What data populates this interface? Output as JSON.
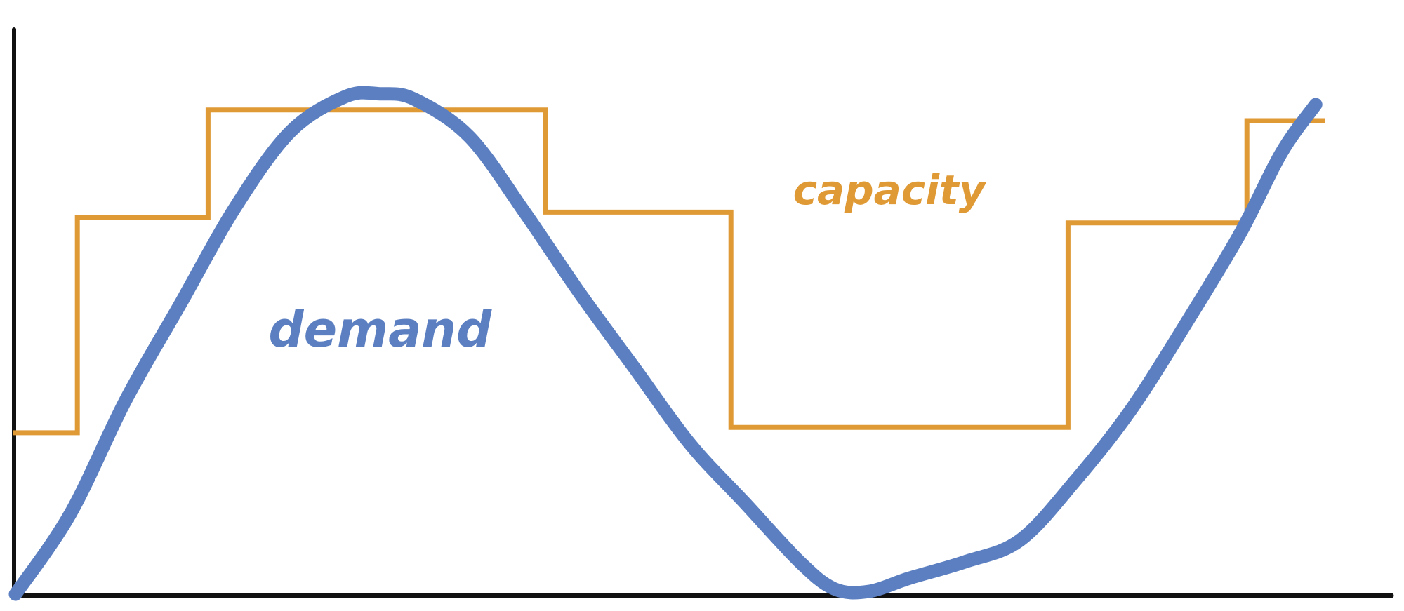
{
  "chart_data": {
    "type": "line",
    "title": "",
    "xlabel": "",
    "ylabel": "",
    "xlim": [
      0,
      100
    ],
    "ylim": [
      0,
      100
    ],
    "grid": false,
    "legend": "none",
    "colors": {
      "axis": "#111111",
      "demand": "#5b7fc1",
      "capacity": "#df9a36"
    },
    "series": [
      {
        "name": "demand",
        "style": "smooth",
        "x": [
          0,
          4,
          8,
          12,
          16,
          20,
          24,
          26.5,
          29,
          33,
          37,
          41,
          45,
          49,
          53,
          57,
          59.5,
          62,
          65,
          69,
          73,
          77,
          81,
          85,
          89,
          92,
          94.5
        ],
        "y": [
          0,
          15,
          36,
          54,
          72,
          86,
          92.5,
          93,
          92,
          85,
          71,
          56,
          42,
          28,
          17,
          6,
          1,
          0.5,
          3,
          6,
          10,
          21,
          34,
          50,
          67,
          82,
          91
        ]
      },
      {
        "name": "capacity",
        "style": "step",
        "x": [
          0,
          4.5,
          4.5,
          14,
          14,
          38.5,
          38.5,
          52,
          52,
          76.5,
          76.5,
          89.5,
          89.5,
          95
        ],
        "y": [
          30,
          30,
          70,
          70,
          90,
          90,
          71,
          71,
          31,
          31,
          69,
          69,
          88,
          88
        ]
      }
    ],
    "annotations": [
      {
        "text": "demand",
        "series": "demand",
        "x": 26.5,
        "y": 46
      },
      {
        "text": "capacity",
        "series": "capacity",
        "x": 63.5,
        "y": 72.5
      }
    ]
  }
}
